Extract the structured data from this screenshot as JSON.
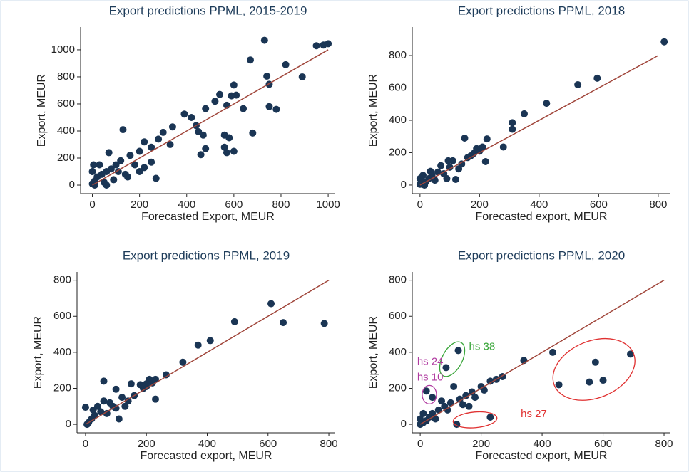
{
  "chart_data": [
    {
      "type": "scatter",
      "title": "Export predictions PPML, 2015-2019",
      "x_label": "Forecasted Export, MEUR",
      "y_label": "Export, MEUR",
      "xlim": [
        -50,
        1030
      ],
      "ylim": [
        -63,
        1168
      ],
      "xticks": [
        0,
        200,
        400,
        600,
        800,
        1000
      ],
      "yticks": [
        0,
        200,
        400,
        600,
        800,
        1000
      ],
      "points": {
        "color": "#1a3554",
        "x": [
          950,
          980,
          1000,
          730,
          670,
          820,
          740,
          890,
          750,
          600,
          610,
          590,
          540,
          520,
          570,
          480,
          640,
          750,
          780,
          680,
          560,
          580,
          470,
          440,
          420,
          390,
          450,
          560,
          600,
          570,
          460,
          480,
          340,
          300,
          280,
          330,
          250,
          220,
          200,
          160,
          130,
          120,
          100,
          80,
          60,
          40,
          20,
          10,
          0,
          50,
          90,
          150,
          200,
          180,
          70,
          30,
          250,
          270,
          220,
          110,
          140,
          0,
          10,
          5,
          60
        ],
        "y": [
          1030,
          1035,
          1045,
          1070,
          925,
          890,
          805,
          800,
          745,
          740,
          665,
          660,
          670,
          620,
          590,
          565,
          565,
          580,
          560,
          385,
          370,
          350,
          370,
          440,
          500,
          525,
          395,
          280,
          250,
          240,
          225,
          270,
          430,
          390,
          340,
          300,
          280,
          320,
          250,
          220,
          410,
          180,
          150,
          120,
          100,
          80,
          60,
          30,
          10,
          20,
          40,
          60,
          100,
          150,
          240,
          150,
          170,
          50,
          130,
          100,
          80,
          100,
          0,
          150,
          0
        ]
      },
      "line": {
        "color": "#a0453a",
        "x": [
          0,
          1000
        ],
        "y": [
          0,
          1000
        ]
      }
    },
    {
      "type": "scatter",
      "title": "Export predictions PPML, 2018",
      "x_label": "Forecasted export, MEUR",
      "y_label": "Export, MEUR",
      "xlim": [
        -26,
        841
      ],
      "ylim": [
        -53,
        976
      ],
      "xticks": [
        0,
        200,
        400,
        600,
        800
      ],
      "yticks": [
        0,
        200,
        400,
        600,
        800
      ],
      "points": {
        "color": "#1a3554",
        "x": [
          820,
          595,
          530,
          425,
          350,
          310,
          310,
          225,
          150,
          280,
          210,
          200,
          220,
          180,
          160,
          110,
          95,
          130,
          120,
          90,
          70,
          60,
          40,
          30,
          20,
          10,
          5,
          0,
          50,
          80,
          100,
          140,
          170,
          190,
          0,
          15,
          35
        ],
        "y": [
          885,
          660,
          620,
          505,
          440,
          385,
          345,
          285,
          290,
          235,
          235,
          210,
          145,
          195,
          170,
          150,
          150,
          100,
          35,
          40,
          120,
          80,
          60,
          40,
          20,
          60,
          10,
          5,
          30,
          70,
          110,
          130,
          180,
          225,
          40,
          0,
          85
        ]
      },
      "line": {
        "color": "#a0453a",
        "x": [
          0,
          800
        ],
        "y": [
          0,
          800
        ]
      }
    },
    {
      "type": "scatter",
      "title": "Export predictions PPML, 2019",
      "x_label": "Forecasted export, MEUR",
      "y_label": "Export, MEUR",
      "xlim": [
        -28,
        821
      ],
      "ylim": [
        -47,
        846
      ],
      "xticks": [
        0,
        200,
        400,
        600,
        800
      ],
      "yticks": [
        0,
        200,
        400,
        600,
        800
      ],
      "points": {
        "color": "#1a3554",
        "x": [
          610,
          490,
          650,
          785,
          410,
          370,
          320,
          265,
          230,
          210,
          200,
          180,
          230,
          150,
          100,
          120,
          110,
          60,
          40,
          80,
          50,
          30,
          20,
          10,
          0,
          5,
          70,
          90,
          140,
          160,
          190,
          130,
          100,
          60,
          25,
          200,
          220
        ],
        "y": [
          670,
          570,
          565,
          560,
          465,
          440,
          345,
          275,
          250,
          250,
          225,
          220,
          140,
          225,
          195,
          150,
          30,
          240,
          100,
          120,
          70,
          50,
          30,
          10,
          95,
          0,
          60,
          100,
          130,
          160,
          200,
          100,
          90,
          130,
          80,
          210,
          230
        ]
      },
      "line": {
        "color": "#a0453a",
        "x": [
          0,
          800
        ],
        "y": [
          0,
          800
        ]
      }
    },
    {
      "type": "scatter",
      "title": "Export predictions PPML, 2020",
      "x_label": "Forecasted export, MEUR",
      "y_label": "Export, MEUR",
      "xlim": [
        -26,
        821
      ],
      "ylim": [
        -47,
        846
      ],
      "xticks": [
        0,
        200,
        400,
        600,
        800
      ],
      "yticks": [
        0,
        200,
        400,
        600,
        800
      ],
      "points": {
        "color": "#1a3554",
        "x": [
          125,
          85,
          20,
          40,
          435,
          340,
          575,
          690,
          455,
          555,
          600,
          230,
          120,
          270,
          250,
          230,
          200,
          170,
          150,
          130,
          110,
          100,
          80,
          60,
          40,
          30,
          20,
          10,
          0,
          50,
          70,
          90,
          140,
          160,
          210,
          180,
          10,
          0
        ],
        "y": [
          410,
          315,
          185,
          150,
          400,
          355,
          345,
          390,
          220,
          235,
          245,
          40,
          0,
          265,
          250,
          240,
          210,
          180,
          160,
          140,
          210,
          120,
          100,
          80,
          60,
          40,
          20,
          10,
          0,
          30,
          130,
          80,
          110,
          100,
          190,
          150,
          60,
          30
        ]
      },
      "line": {
        "color": "#a0453a",
        "x": [
          0,
          800
        ],
        "y": [
          0,
          800
        ]
      },
      "annotations": [
        {
          "text": "hs 38",
          "color": "#3aa63a"
        },
        {
          "text": "hs 24",
          "color": "#b03aa0"
        },
        {
          "text": "hs 10",
          "color": "#b03aa0"
        },
        {
          "text": "hs 27",
          "color": "#e03030"
        }
      ]
    }
  ]
}
